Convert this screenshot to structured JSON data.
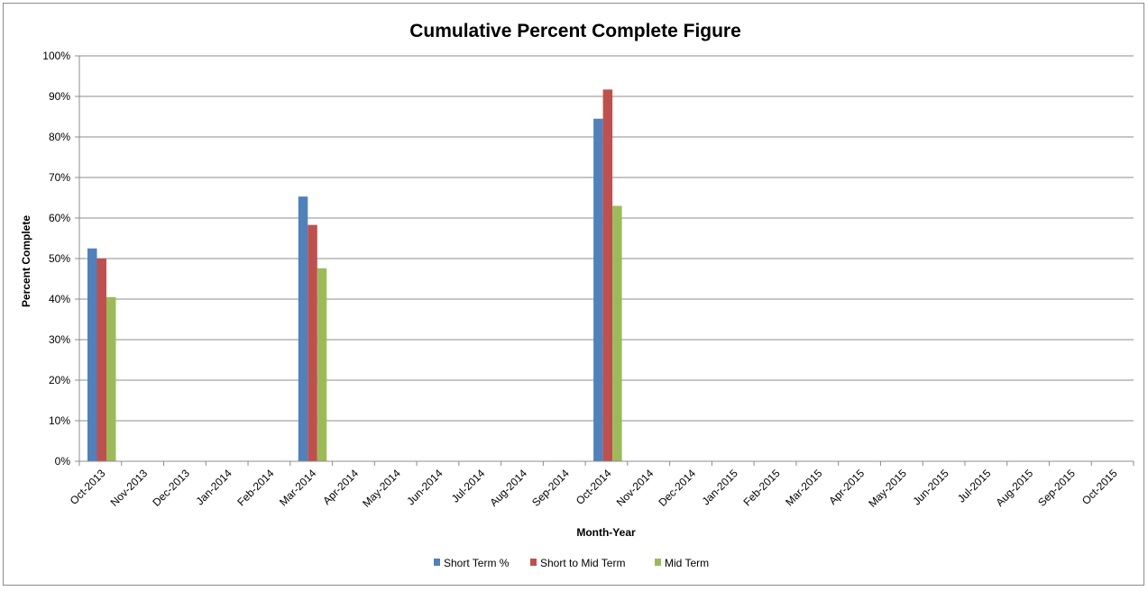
{
  "chart_data": {
    "type": "bar",
    "title": "Cumulative Percent Complete Figure",
    "xlabel": "Month-Year",
    "ylabel": "Percent Complete",
    "ylim": [
      0,
      100
    ],
    "y_ticks": [
      "0%",
      "10%",
      "20%",
      "30%",
      "40%",
      "50%",
      "60%",
      "70%",
      "80%",
      "90%",
      "100%"
    ],
    "grid": true,
    "legend_position": "bottom",
    "categories": [
      "Oct-2013",
      "Nov-2013",
      "Dec-2013",
      "Jan-2014",
      "Feb-2014",
      "Mar-2014",
      "Apr-2014",
      "May-2014",
      "Jun-2014",
      "Jul-2014",
      "Aug-2014",
      "Sep-2014",
      "Oct-2014",
      "Nov-2014",
      "Dec-2014",
      "Jan-2015",
      "Feb-2015",
      "Mar-2015",
      "Apr-2015",
      "May-2015",
      "Jun-2015",
      "Jul-2015",
      "Aug-2015",
      "Sep-2015",
      "Oct-2015"
    ],
    "series": [
      {
        "name": "Short Term %",
        "color": "#4f81bd",
        "values": [
          52.5,
          null,
          null,
          null,
          null,
          65.3,
          null,
          null,
          null,
          null,
          null,
          null,
          84.5,
          null,
          null,
          null,
          null,
          null,
          null,
          null,
          null,
          null,
          null,
          null,
          null
        ]
      },
      {
        "name": "Short to Mid Term",
        "color": "#c0504d",
        "values": [
          50.0,
          null,
          null,
          null,
          null,
          58.3,
          null,
          null,
          null,
          null,
          null,
          null,
          91.7,
          null,
          null,
          null,
          null,
          null,
          null,
          null,
          null,
          null,
          null,
          null,
          null
        ]
      },
      {
        "name": "Mid Term",
        "color": "#9bbb59",
        "values": [
          40.5,
          null,
          null,
          null,
          null,
          47.6,
          null,
          null,
          null,
          null,
          null,
          null,
          63.0,
          null,
          null,
          null,
          null,
          null,
          null,
          null,
          null,
          null,
          null,
          null,
          null
        ]
      }
    ]
  }
}
